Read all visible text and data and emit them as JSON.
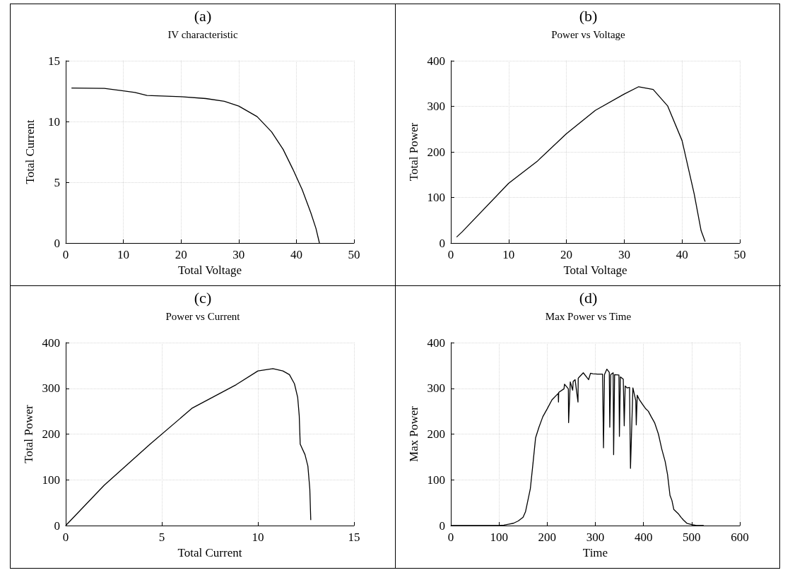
{
  "chart_data": [
    {
      "type": "line",
      "title": "(a)",
      "subtitle": "IV characteristic",
      "xlabel": "Total Voltage",
      "ylabel": "Total Current",
      "color": "#000000",
      "grid": true,
      "xlim": [
        0,
        50
      ],
      "ylim": [
        0,
        15
      ],
      "xticks": [
        0,
        10,
        20,
        30,
        40,
        50
      ],
      "yticks": [
        0,
        5,
        10,
        15
      ],
      "x": [
        1,
        6.7,
        10,
        12,
        14.1,
        20,
        24.3,
        27.5,
        30,
        33.2,
        35.7,
        37.7,
        39.4,
        41,
        42.5,
        43.4,
        44
      ],
      "values": [
        12.76,
        12.72,
        12.52,
        12.39,
        12.14,
        12.04,
        11.89,
        11.66,
        11.27,
        10.4,
        9.15,
        7.71,
        6.07,
        4.4,
        2.5,
        1.2,
        0
      ]
    },
    {
      "type": "line",
      "title": "(b)",
      "subtitle": "Power vs Voltage",
      "xlabel": "Total Voltage",
      "ylabel": "Total Power",
      "color": "#000000",
      "grid": true,
      "xlim": [
        0,
        50
      ],
      "ylim": [
        0,
        400
      ],
      "xticks": [
        0,
        10,
        20,
        30,
        40,
        50
      ],
      "yticks": [
        0,
        100,
        200,
        300,
        400
      ],
      "x": [
        1,
        2,
        10,
        15,
        20,
        25,
        30,
        32.5,
        35,
        37.5,
        40,
        42.1,
        43.3,
        44
      ],
      "values": [
        13,
        25,
        131,
        180,
        240,
        291,
        327,
        343,
        337,
        301,
        225,
        108,
        27,
        3
      ]
    },
    {
      "type": "line",
      "title": "(c)",
      "subtitle": "Power vs Current",
      "xlabel": "Total Current",
      "ylabel": "Total Power",
      "color": "#000000",
      "grid": true,
      "xlim": [
        0,
        15
      ],
      "ylim": [
        0,
        400
      ],
      "xticks": [
        0,
        5,
        10,
        15
      ],
      "yticks": [
        0,
        100,
        200,
        300,
        400
      ],
      "x": [
        0,
        2,
        4.39,
        6.59,
        8.87,
        10,
        10.78,
        11.3,
        11.64,
        11.9,
        12.07,
        12.15,
        12.2,
        12.45,
        12.6,
        12.7,
        12.75
      ],
      "values": [
        0,
        88,
        178,
        257,
        308,
        338,
        343,
        338,
        330,
        310,
        280,
        240,
        178,
        155,
        130,
        80,
        12
      ]
    },
    {
      "type": "line",
      "title": "(d)",
      "subtitle": "Max Power vs Time",
      "xlabel": "Time",
      "ylabel": "Max Power",
      "color": "#000000",
      "grid": true,
      "xlim": [
        0,
        600
      ],
      "ylim": [
        0,
        400
      ],
      "xticks": [
        0,
        100,
        200,
        300,
        400,
        500,
        600
      ],
      "yticks": [
        0,
        100,
        200,
        300,
        400
      ],
      "x": [
        0,
        100,
        110,
        120,
        130,
        140,
        150,
        155,
        160,
        165,
        170,
        176,
        183,
        191,
        200,
        210,
        223,
        223.5,
        224,
        235,
        236,
        244,
        244.5,
        248,
        253,
        254,
        258,
        264,
        264.5,
        266,
        275,
        286,
        290,
        295,
        305,
        315,
        317,
        319,
        324,
        329,
        330,
        332,
        337,
        338,
        340,
        349,
        350,
        352,
        358,
        360,
        362,
        366,
        371,
        373,
        378,
        384,
        385,
        387,
        391,
        398,
        404,
        410,
        416,
        423,
        431,
        438,
        445,
        450,
        455,
        459,
        463,
        468,
        473,
        478,
        483,
        490,
        500,
        510,
        525
      ],
      "values": [
        0,
        0,
        1,
        3,
        5,
        10,
        18,
        30,
        55,
        80,
        130,
        192,
        215,
        238,
        255,
        275,
        289,
        270,
        291,
        299,
        309,
        299,
        225,
        314,
        296,
        315,
        319,
        270,
        322,
        324,
        334,
        319,
        333,
        332,
        331,
        331,
        170,
        330,
        342,
        335,
        215,
        330,
        334,
        155,
        330,
        329,
        195,
        325,
        320,
        218,
        305,
        301,
        302,
        125,
        301,
        273,
        220,
        285,
        276,
        265,
        256,
        250,
        238,
        225,
        200,
        167,
        140,
        111,
        66,
        55,
        35,
        30,
        25,
        18,
        12,
        5,
        2,
        0,
        0
      ]
    }
  ]
}
